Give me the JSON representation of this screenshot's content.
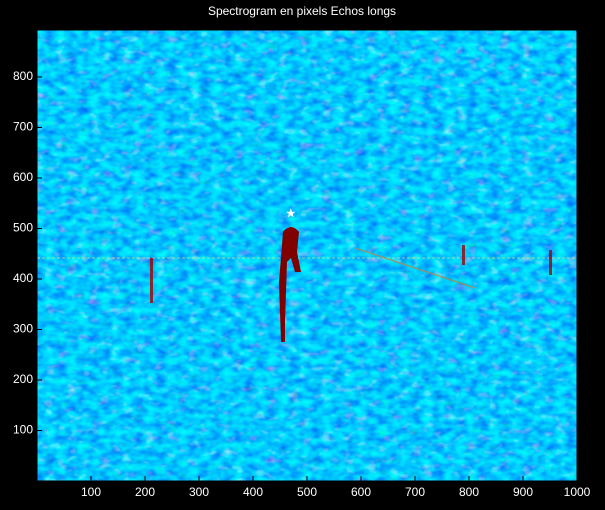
{
  "chart_data": {
    "type": "image",
    "title": "Spectrogram en pixels Echos longs",
    "xlim": [
      0,
      1000
    ],
    "ylim": [
      0,
      893
    ],
    "xticks": [
      100,
      200,
      300,
      400,
      500,
      600,
      700,
      800,
      900,
      1000
    ],
    "yticks": [
      100,
      200,
      300,
      400,
      500,
      600,
      700,
      800
    ],
    "points": {
      "x": [
        470
      ],
      "y": [
        530
      ],
      "color": "#ffffff"
    }
  }
}
